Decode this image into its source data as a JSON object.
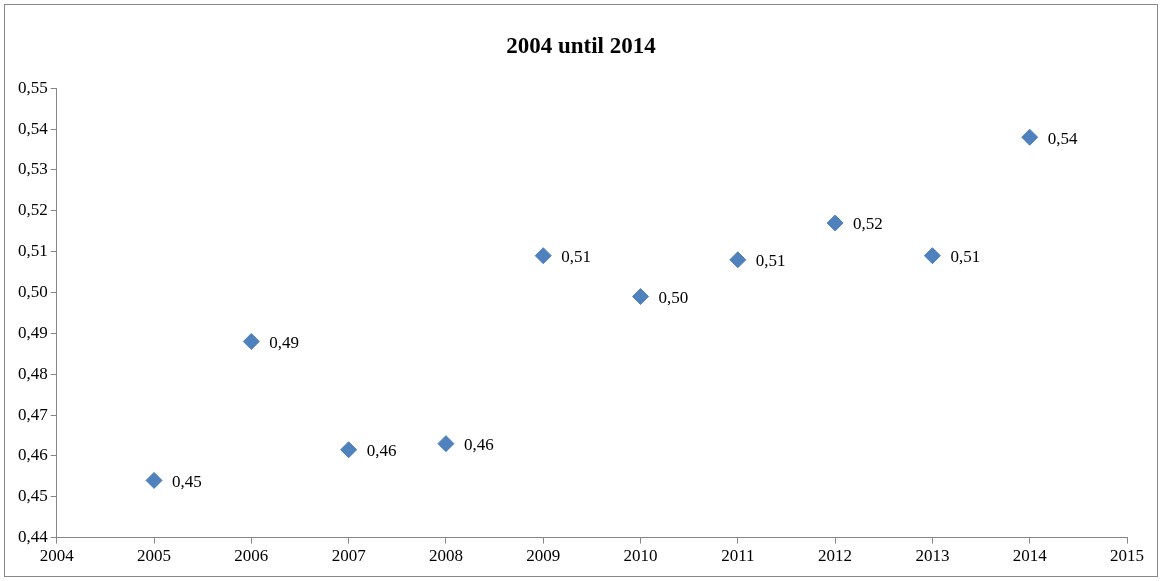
{
  "chart_data": {
    "type": "scatter",
    "title": "2004 until 2014",
    "marker": "diamond",
    "grid": false,
    "legend": false,
    "x": [
      2005,
      2006,
      2007,
      2008,
      2009,
      2010,
      2011,
      2012,
      2013,
      2014
    ],
    "series": [
      {
        "color": "#4f81bd",
        "values": [
          0.454,
          0.488,
          0.4615,
          0.463,
          0.509,
          0.499,
          0.508,
          0.517,
          0.509,
          0.538
        ],
        "value_labels": [
          "0,45",
          "0,49",
          "0,46",
          "0,46",
          "0,51",
          "0,50",
          "0,51",
          "0,52",
          "0,51",
          "0,54"
        ]
      }
    ],
    "xlim": [
      2004,
      2015
    ],
    "xticks": [
      2004,
      2005,
      2006,
      2007,
      2008,
      2009,
      2010,
      2011,
      2012,
      2013,
      2014,
      2015
    ],
    "ylim": [
      0.44,
      0.55
    ],
    "yticks": [
      {
        "value": 0.44,
        "label": "0,44"
      },
      {
        "value": 0.45,
        "label": "0,45"
      },
      {
        "value": 0.46,
        "label": "0,46"
      },
      {
        "value": 0.47,
        "label": "0,47"
      },
      {
        "value": 0.48,
        "label": "0,48"
      },
      {
        "value": 0.49,
        "label": "0,49"
      },
      {
        "value": 0.5,
        "label": "0,50"
      },
      {
        "value": 0.51,
        "label": "0,51"
      },
      {
        "value": 0.52,
        "label": "0,52"
      },
      {
        "value": 0.53,
        "label": "0,53"
      },
      {
        "value": 0.54,
        "label": "0,54"
      },
      {
        "value": 0.55,
        "label": "0,55"
      }
    ]
  }
}
